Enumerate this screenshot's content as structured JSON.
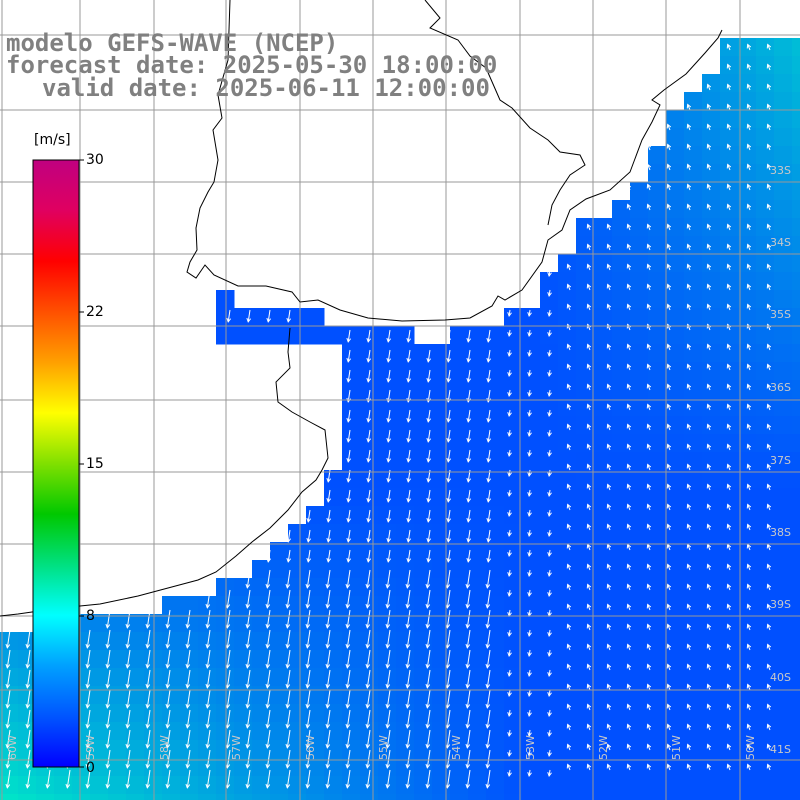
{
  "title": {
    "line1": "modelo GEFS-WAVE (NCEP)",
    "line2": "forecast date: 2025-05-30 18:00:00",
    "line3": "valid date: 2025-06-11 12:00:00"
  },
  "colorbar": {
    "unit": "[m/s]",
    "ticks": [
      "30",
      "22",
      "15",
      "8",
      "0"
    ],
    "min": 0,
    "max": 30,
    "colors": [
      "#0000ff",
      "#0055ff",
      "#00a0ff",
      "#00ffff",
      "#00e080",
      "#00c800",
      "#80e000",
      "#ffff00",
      "#ffa000",
      "#ff5000",
      "#ff0000",
      "#e00060",
      "#c00080"
    ]
  },
  "map": {
    "lat_labels": [
      "33S",
      "34S",
      "35S",
      "36S",
      "37S",
      "38S",
      "39S",
      "40S",
      "41S"
    ],
    "lon_labels": [
      "60W",
      "59W",
      "58W",
      "57W",
      "56W",
      "55W",
      "54W",
      "53W",
      "52W",
      "51W",
      "50W"
    ],
    "ocean_color_low": "#0030ff",
    "ocean_color_high": "#00ffd8",
    "grid_color": "#999999",
    "coast_color": "#000000"
  }
}
